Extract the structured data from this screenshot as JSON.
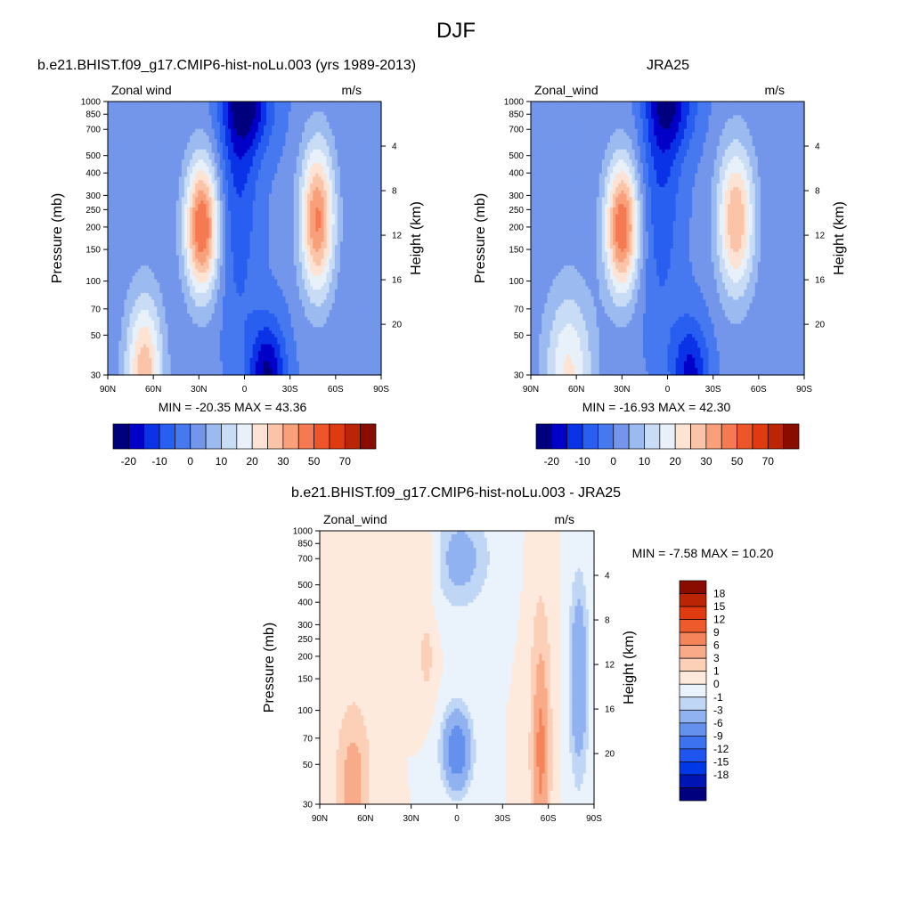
{
  "page": {
    "title": "DJF"
  },
  "colors": {
    "model_scale": [
      "#00007f",
      "#0000c8",
      "#0a32e6",
      "#285ff0",
      "#4678f0",
      "#7396eb",
      "#9bbaf0",
      "#c8dcf5",
      "#e8f1f9",
      "#fde3d3",
      "#fbc4a8",
      "#f9a07b",
      "#f57a51",
      "#ee5629",
      "#e03a10",
      "#bb2506",
      "#8a0c00"
    ],
    "diff_scale": [
      "#00007f",
      "#0014b4",
      "#0037e6",
      "#1e55f0",
      "#3c72f0",
      "#6491ee",
      "#91b2f0",
      "#bfd6f5",
      "#eaf3fb",
      "#fdeadd",
      "#fccfb7",
      "#f9ab89",
      "#f5845a",
      "#ee5a2c",
      "#e03a10",
      "#bb2506",
      "#8a0c00"
    ]
  },
  "chart_data": [
    {
      "id": "model",
      "type": "heatmap",
      "title": "b.e21.BHIST.f09_g17.CMIP6-hist-noLu.003 (yrs 1989-2013)",
      "left_label": "Zonal wind",
      "unit_label": "m/s",
      "ylabel": "Pressure (mb)",
      "ylabel_right": "Height (km)",
      "x_ticks": [
        "90N",
        "60N",
        "30N",
        "0",
        "30S",
        "60S",
        "90S"
      ],
      "y_ticks": [
        "30",
        "50",
        "70",
        "100",
        "150",
        "200",
        "250",
        "300",
        "400",
        "500",
        "700",
        "850",
        "1000"
      ],
      "y_ticks_right": [
        "20",
        "16",
        "12",
        "8",
        "4"
      ],
      "stats": {
        "text": "MIN = -20.35  MAX =  43.36",
        "min": -20.35,
        "max": 43.36
      },
      "colorbar": {
        "orientation": "horizontal",
        "labels": [
          "-20",
          "-10",
          "0",
          "10",
          "20",
          "30",
          "50",
          "70"
        ]
      }
    },
    {
      "id": "obs",
      "type": "heatmap",
      "title": "JRA25",
      "left_label": "Zonal_wind",
      "unit_label": "m/s",
      "ylabel": "Pressure (mb)",
      "ylabel_right": "Height (km)",
      "x_ticks": [
        "90N",
        "60N",
        "30N",
        "0",
        "30S",
        "60S",
        "90S"
      ],
      "y_ticks": [
        "30",
        "50",
        "70",
        "100",
        "150",
        "200",
        "250",
        "300",
        "400",
        "500",
        "700",
        "850",
        "1000"
      ],
      "y_ticks_right": [
        "20",
        "16",
        "12",
        "8",
        "4"
      ],
      "stats": {
        "text": "MIN = -16.93  MAX =  42.30",
        "min": -16.93,
        "max": 42.3
      },
      "colorbar": {
        "orientation": "horizontal",
        "labels": [
          "-20",
          "-10",
          "0",
          "10",
          "20",
          "30",
          "50",
          "70"
        ]
      }
    },
    {
      "id": "diff",
      "type": "heatmap",
      "title": "b.e21.BHIST.f09_g17.CMIP6-hist-noLu.003 - JRA25",
      "left_label": "Zonal_wind",
      "unit_label": "m/s",
      "ylabel": "Pressure (mb)",
      "ylabel_right": "Height (km)",
      "x_ticks": [
        "90N",
        "60N",
        "30N",
        "0",
        "30S",
        "60S",
        "90S"
      ],
      "y_ticks": [
        "30",
        "50",
        "70",
        "100",
        "150",
        "200",
        "250",
        "300",
        "400",
        "500",
        "700",
        "850",
        "1000"
      ],
      "y_ticks_right": [
        "20",
        "16",
        "12",
        "8",
        "4"
      ],
      "stats": {
        "text": "MIN =  -7.58  MAX =  10.20",
        "min": -7.58,
        "max": 10.2
      },
      "colorbar": {
        "orientation": "vertical",
        "labels": [
          "18",
          "15",
          "12",
          "9",
          "6",
          "3",
          "1",
          "0",
          "-1",
          "-3",
          "-6",
          "-9",
          "-12",
          "-15",
          "-18"
        ]
      }
    }
  ]
}
